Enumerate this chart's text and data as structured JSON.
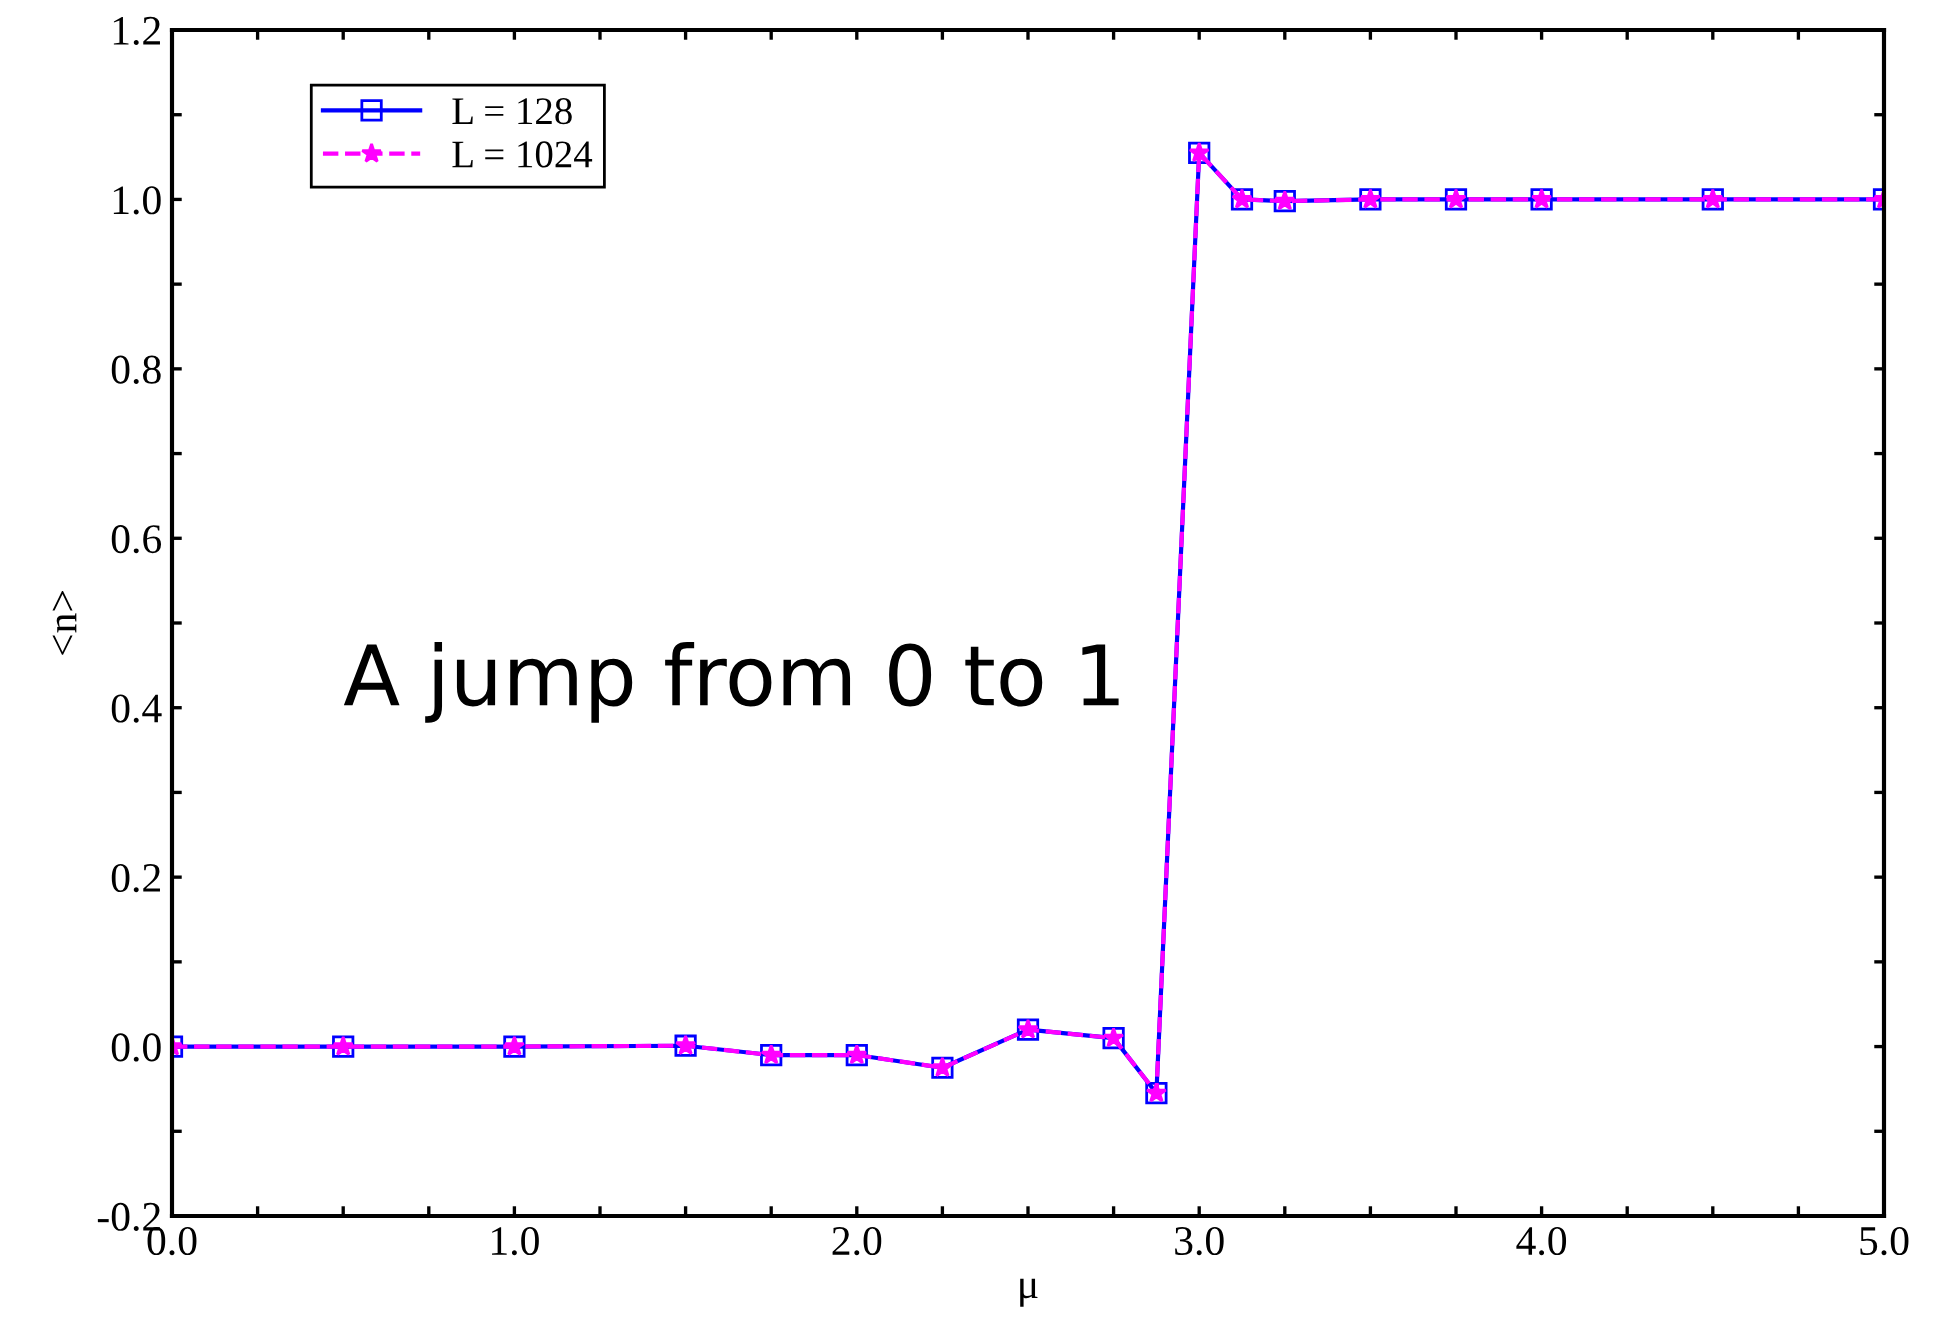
{
  "chart_data": {
    "type": "line",
    "xlabel": "μ",
    "ylabel": "<n>",
    "x": [
      0,
      0.5,
      1.0,
      1.5,
      1.75,
      2.0,
      2.25,
      2.5,
      2.75,
      2.875,
      3.0,
      3.125,
      3.25,
      3.5,
      3.75,
      4.0,
      4.5,
      5.0
    ],
    "series": [
      {
        "name": "L = 128",
        "color": "#0000ff",
        "marker": "square",
        "line_style": "solid",
        "values": [
          0,
          0,
          0,
          0.001,
          -0.01,
          -0.01,
          -0.025,
          0.02,
          0.01,
          -0.055,
          1.055,
          1.0,
          0.998,
          1.0,
          1.0,
          1.0,
          1.0,
          1.0
        ]
      },
      {
        "name": "L = 1024",
        "color": "#ff00ff",
        "marker": "star",
        "line_style": "dashed",
        "values": [
          0,
          0,
          0,
          0.001,
          -0.01,
          -0.01,
          -0.025,
          0.02,
          0.01,
          -0.055,
          1.055,
          1.0,
          0.998,
          1.0,
          1.0,
          1.0,
          1.0,
          1.0
        ]
      }
    ],
    "xlim": [
      0,
      5
    ],
    "ylim": [
      -0.2,
      1.2
    ],
    "xticks": [
      {
        "value": 0,
        "label": "0.0"
      },
      {
        "value": 0.25,
        "label": null
      },
      {
        "value": 0.5,
        "label": null
      },
      {
        "value": 0.75,
        "label": null
      },
      {
        "value": 1,
        "label": "1.0"
      },
      {
        "value": 1.25,
        "label": null
      },
      {
        "value": 1.5,
        "label": null
      },
      {
        "value": 1.75,
        "label": null
      },
      {
        "value": 2,
        "label": "2.0"
      },
      {
        "value": 2.25,
        "label": null
      },
      {
        "value": 2.5,
        "label": null
      },
      {
        "value": 2.75,
        "label": null
      },
      {
        "value": 3,
        "label": "3.0"
      },
      {
        "value": 3.25,
        "label": null
      },
      {
        "value": 3.5,
        "label": null
      },
      {
        "value": 3.75,
        "label": null
      },
      {
        "value": 4,
        "label": "4.0"
      },
      {
        "value": 4.25,
        "label": null
      },
      {
        "value": 4.5,
        "label": null
      },
      {
        "value": 4.75,
        "label": null
      },
      {
        "value": 5,
        "label": "5.0"
      }
    ],
    "yticks": [
      -0.2,
      {
        "value": -0.1,
        "label": null
      },
      {
        "value": 0,
        "label": "0.0"
      },
      {
        "value": 0.1,
        "label": null
      },
      0.2,
      {
        "value": 0.3,
        "label": null
      },
      0.4,
      {
        "value": 0.5,
        "label": null
      },
      0.6,
      {
        "value": 0.7,
        "label": null
      },
      0.8,
      {
        "value": 0.9,
        "label": null
      },
      {
        "value": 1,
        "label": "1.0"
      },
      {
        "value": 1.1,
        "label": null
      },
      1.2
    ],
    "annotations": [
      "A jump from 0 to 1"
    ],
    "legend": "top left",
    "grid": false
  }
}
